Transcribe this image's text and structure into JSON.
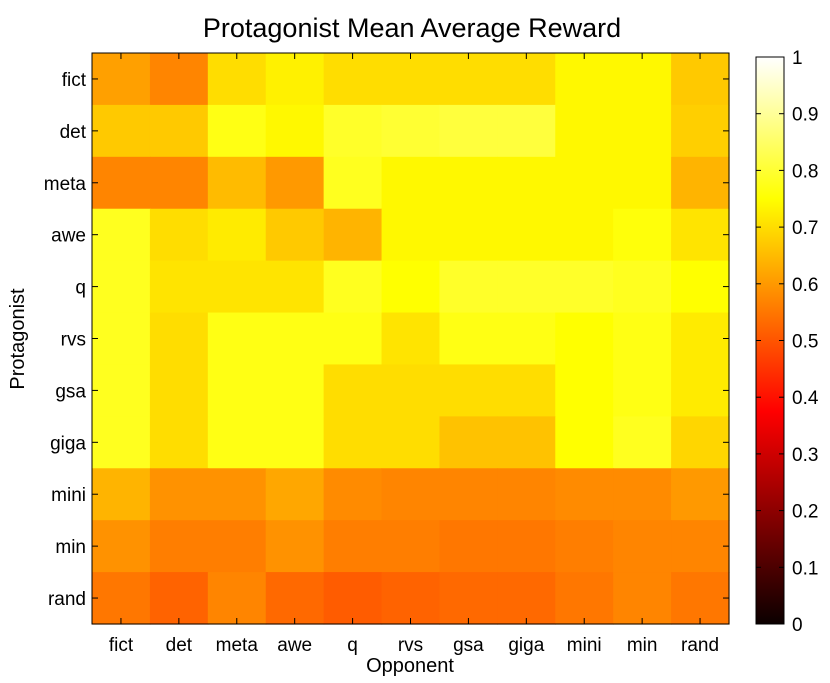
{
  "chart_data": {
    "type": "heatmap",
    "title": "Protagonist Mean Average Reward",
    "xlabel": "Opponent",
    "ylabel": "Protagonist",
    "x_categories": [
      "fict",
      "det",
      "meta",
      "awe",
      "q",
      "rvs",
      "gsa",
      "giga",
      "mini",
      "min",
      "rand"
    ],
    "y_categories": [
      "fict",
      "det",
      "meta",
      "awe",
      "q",
      "rvs",
      "gsa",
      "giga",
      "mini",
      "min",
      "rand"
    ],
    "values": [
      [
        0.61,
        0.57,
        0.7,
        0.73,
        0.7,
        0.7,
        0.7,
        0.7,
        0.74,
        0.74,
        0.67
      ],
      [
        0.67,
        0.67,
        0.77,
        0.74,
        0.79,
        0.8,
        0.81,
        0.81,
        0.74,
        0.74,
        0.68
      ],
      [
        0.57,
        0.57,
        0.65,
        0.6,
        0.78,
        0.74,
        0.74,
        0.74,
        0.74,
        0.74,
        0.64
      ],
      [
        0.78,
        0.7,
        0.72,
        0.67,
        0.64,
        0.74,
        0.74,
        0.74,
        0.74,
        0.76,
        0.71
      ],
      [
        0.78,
        0.71,
        0.71,
        0.71,
        0.78,
        0.75,
        0.79,
        0.79,
        0.79,
        0.78,
        0.75
      ],
      [
        0.78,
        0.7,
        0.77,
        0.77,
        0.77,
        0.71,
        0.77,
        0.77,
        0.75,
        0.77,
        0.72
      ],
      [
        0.78,
        0.7,
        0.77,
        0.77,
        0.7,
        0.7,
        0.7,
        0.7,
        0.75,
        0.77,
        0.72
      ],
      [
        0.78,
        0.7,
        0.77,
        0.77,
        0.7,
        0.7,
        0.66,
        0.66,
        0.75,
        0.78,
        0.69
      ],
      [
        0.64,
        0.59,
        0.59,
        0.62,
        0.58,
        0.57,
        0.57,
        0.57,
        0.58,
        0.58,
        0.6
      ],
      [
        0.59,
        0.56,
        0.56,
        0.59,
        0.56,
        0.56,
        0.55,
        0.55,
        0.56,
        0.57,
        0.57
      ],
      [
        0.55,
        0.52,
        0.57,
        0.53,
        0.51,
        0.52,
        0.53,
        0.53,
        0.55,
        0.57,
        0.55
      ]
    ],
    "colorbar": {
      "colormap": "hot",
      "range": [
        0,
        1
      ],
      "ticks": [
        "0",
        "0.1",
        "0.2",
        "0.3",
        "0.4",
        "0.5",
        "0.6",
        "0.7",
        "0.8",
        "0.9",
        "1"
      ]
    }
  }
}
